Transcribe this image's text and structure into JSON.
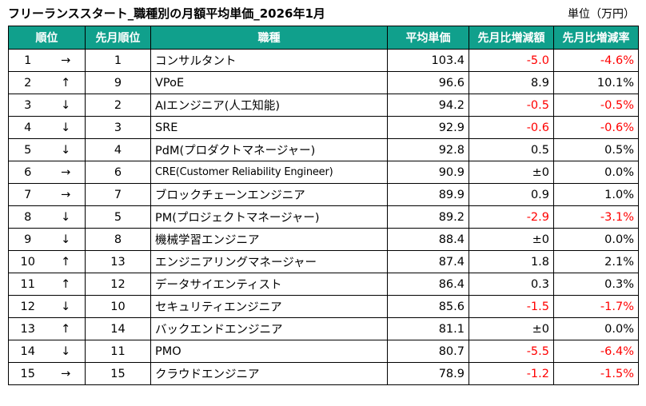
{
  "title": "フリーランススタート_職種別の月額平均単価_2026年1月",
  "unit": "単位（万円）",
  "headers": {
    "rank": "順位",
    "prev_rank": "先月順位",
    "job": "職種",
    "avg": "平均単価",
    "diff": "先月比増減額",
    "rate": "先月比増減率"
  },
  "colors": {
    "header_bg": "#10a08c",
    "negative": "#ff0000"
  },
  "rows": [
    {
      "rank": "1",
      "arrow": "→",
      "prev": "1",
      "job": "コンサルタント",
      "avg": "103.4",
      "diff": "-5.0",
      "rate": "-4.6%",
      "negative": true
    },
    {
      "rank": "2",
      "arrow": "↑",
      "prev": "9",
      "job": "VPoE",
      "avg": "96.6",
      "diff": "8.9",
      "rate": "10.1%",
      "negative": false
    },
    {
      "rank": "3",
      "arrow": "↓",
      "prev": "2",
      "job": "AIエンジニア(人工知能)",
      "avg": "94.2",
      "diff": "-0.5",
      "rate": "-0.5%",
      "negative": true
    },
    {
      "rank": "4",
      "arrow": "↓",
      "prev": "3",
      "job": "SRE",
      "avg": "92.9",
      "diff": "-0.6",
      "rate": "-0.6%",
      "negative": true
    },
    {
      "rank": "5",
      "arrow": "↓",
      "prev": "4",
      "job": "PdM(プロダクトマネージャー)",
      "avg": "92.8",
      "diff": "0.5",
      "rate": "0.5%",
      "negative": false
    },
    {
      "rank": "6",
      "arrow": "→",
      "prev": "6",
      "job": "CRE(Customer Reliability Engineer)",
      "avg": "90.9",
      "diff": "±0",
      "rate": "0.0%",
      "negative": false
    },
    {
      "rank": "7",
      "arrow": "→",
      "prev": "7",
      "job": "ブロックチェーンエンジニア",
      "avg": "89.9",
      "diff": "0.9",
      "rate": "1.0%",
      "negative": false
    },
    {
      "rank": "8",
      "arrow": "↓",
      "prev": "5",
      "job": "PM(プロジェクトマネージャー)",
      "avg": "89.2",
      "diff": "-2.9",
      "rate": "-3.1%",
      "negative": true
    },
    {
      "rank": "9",
      "arrow": "↓",
      "prev": "8",
      "job": "機械学習エンジニア",
      "avg": "88.4",
      "diff": "±0",
      "rate": "0.0%",
      "negative": false
    },
    {
      "rank": "10",
      "arrow": "↑",
      "prev": "13",
      "job": "エンジニアリングマネージャー",
      "avg": "87.4",
      "diff": "1.8",
      "rate": "2.1%",
      "negative": false
    },
    {
      "rank": "11",
      "arrow": "↑",
      "prev": "12",
      "job": "データサイエンティスト",
      "avg": "86.4",
      "diff": "0.3",
      "rate": "0.3%",
      "negative": false
    },
    {
      "rank": "12",
      "arrow": "↓",
      "prev": "10",
      "job": "セキュリティエンジニア",
      "avg": "85.6",
      "diff": "-1.5",
      "rate": "-1.7%",
      "negative": true
    },
    {
      "rank": "13",
      "arrow": "↑",
      "prev": "14",
      "job": "バックエンドエンジニア",
      "avg": "81.1",
      "diff": "±0",
      "rate": "0.0%",
      "negative": false
    },
    {
      "rank": "14",
      "arrow": "↓",
      "prev": "11",
      "job": "PMO",
      "avg": "80.7",
      "diff": "-5.5",
      "rate": "-6.4%",
      "negative": true
    },
    {
      "rank": "15",
      "arrow": "→",
      "prev": "15",
      "job": "クラウドエンジニア",
      "avg": "78.9",
      "diff": "-1.2",
      "rate": "-1.5%",
      "negative": true
    }
  ]
}
